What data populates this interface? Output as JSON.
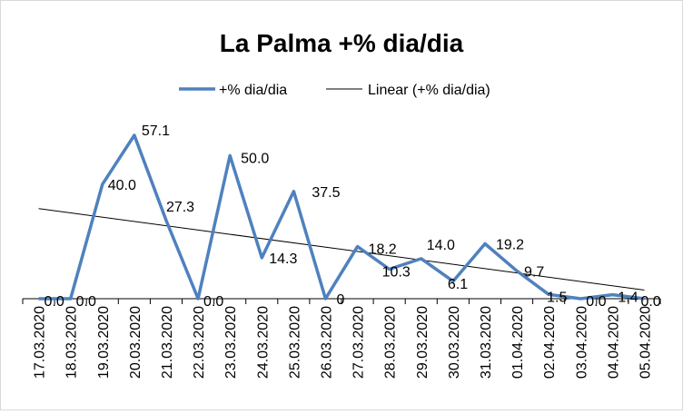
{
  "chart_data": {
    "type": "line",
    "title": "La Palma +% dia/dia",
    "legend_position": "top",
    "grid": false,
    "xlabel": "",
    "ylabel": "",
    "ylim": [
      0,
      62
    ],
    "categories": [
      "17.03.2020",
      "18.03.2020",
      "19.03.2020",
      "20.03.2020",
      "21.03.2020",
      "22.03.2020",
      "23.03.2020",
      "24.03.2020",
      "25.03.2020",
      "26.03.2020",
      "27.03.2020",
      "28.03.2020",
      "29.03.2020",
      "30.03.2020",
      "31.03.2020",
      "01.04.2020",
      "02.04.2020",
      "03.04.2020",
      "04.04.2020",
      "05.04.2020"
    ],
    "series": [
      {
        "name": "+% dia/dia",
        "color": "#4f81bd",
        "values": [
          0.0,
          0.0,
          40.0,
          57.1,
          27.3,
          0.0,
          50.0,
          14.3,
          37.5,
          0,
          18.2,
          10.3,
          14.0,
          6.1,
          19.2,
          9.7,
          1.5,
          0.0,
          1.4,
          0.0
        ],
        "labels": [
          "0.0",
          "0.0",
          "40.0",
          "57.1",
          "27.3",
          "0.0",
          "50.0",
          "14.3",
          "37.5",
          "0",
          "18.2",
          "10.3",
          "14.0",
          "6.1",
          "19.2",
          "9.7",
          "1.5",
          "0.0",
          "1.4",
          "0.0"
        ]
      }
    ],
    "trendline": {
      "name": "Linear (+% dia/dia)",
      "color": "#000000",
      "start": 31.5,
      "end": 3.0
    }
  }
}
